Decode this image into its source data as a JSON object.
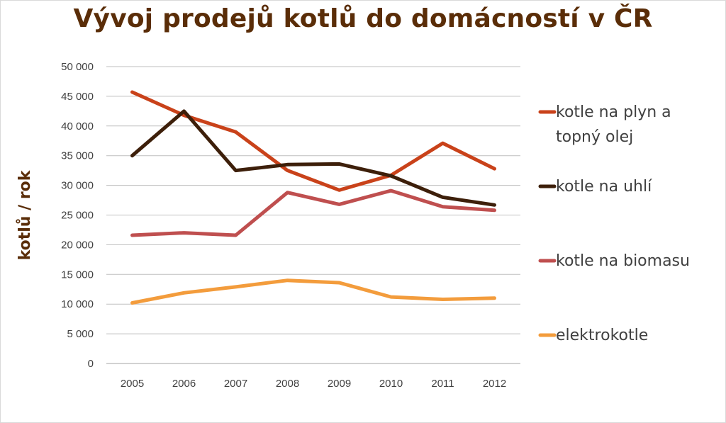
{
  "chart_data": {
    "type": "line",
    "title": "Vývoj prodejů kotlů do domácností v ČR",
    "xlabel": "",
    "ylabel": "kotlů / rok",
    "categories": [
      "2005",
      "2006",
      "2007",
      "2008",
      "2009",
      "2010",
      "2011",
      "2012"
    ],
    "ylim": [
      0,
      50000
    ],
    "yticks": [
      0,
      5000,
      10000,
      15000,
      20000,
      25000,
      30000,
      35000,
      40000,
      45000,
      50000
    ],
    "ytick_labels": [
      "0",
      "5 000",
      "10 000",
      "15 000",
      "20 000",
      "25 000",
      "30 000",
      "35 000",
      "40 000",
      "45 000",
      "50 000"
    ],
    "grid": true,
    "legend_position": "right",
    "series": [
      {
        "name": "kotle na plyn a topný olej",
        "legend_lines": [
          "kotle na plyn a",
          "topný olej"
        ],
        "color": "#c9421a",
        "values": [
          45700,
          41800,
          39000,
          32500,
          29200,
          31700,
          37100,
          32800
        ]
      },
      {
        "name": "kotle na uhlí",
        "legend_lines": [
          "kotle na uhlí"
        ],
        "color": "#3d1f0a",
        "values": [
          35000,
          42500,
          32500,
          33500,
          33600,
          31600,
          28000,
          26700
        ]
      },
      {
        "name": "kotle na biomasu",
        "legend_lines": [
          "kotle na biomasu"
        ],
        "color": "#bf4f4f",
        "values": [
          21600,
          22000,
          21600,
          28800,
          26800,
          29100,
          26400,
          25800
        ]
      },
      {
        "name": "elektrokotle",
        "legend_lines": [
          "elektrokotle"
        ],
        "color": "#f39c3c",
        "values": [
          10200,
          11900,
          12900,
          14000,
          13600,
          11200,
          10800,
          11000
        ]
      }
    ]
  }
}
